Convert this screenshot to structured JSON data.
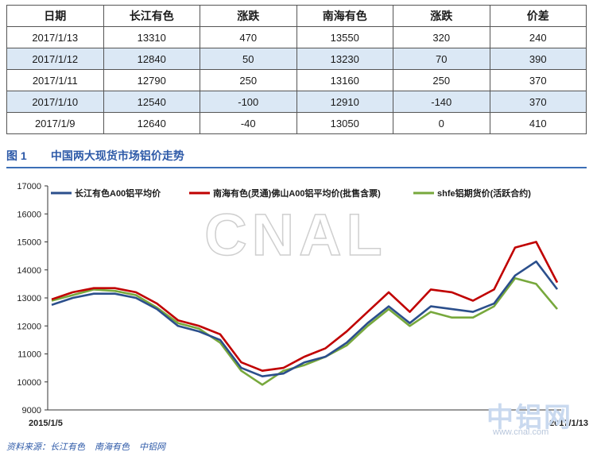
{
  "table": {
    "headers": [
      "日期",
      "长江有色",
      "涨跌",
      "南海有色",
      "涨跌",
      "价差"
    ],
    "rows": [
      [
        "2017/1/13",
        "13310",
        "470",
        "13550",
        "320",
        "240"
      ],
      [
        "2017/1/12",
        "12840",
        "50",
        "13230",
        "70",
        "390"
      ],
      [
        "2017/1/11",
        "12790",
        "250",
        "13160",
        "250",
        "370"
      ],
      [
        "2017/1/10",
        "12540",
        "-100",
        "12910",
        "-140",
        "370"
      ],
      [
        "2017/1/9",
        "12640",
        "-40",
        "13050",
        "0",
        "410"
      ]
    ]
  },
  "figure": {
    "number": "图 1",
    "title": "中国两大现货市场铝价走势"
  },
  "source": {
    "label": "资料来源：",
    "items": [
      "长江有色",
      "南海有色",
      "中铝网"
    ]
  },
  "watermarks": {
    "center": "CNAL",
    "right": "中铝网",
    "url": "www.cnal.com"
  },
  "colors": {
    "changjiang": "#2b4f8c",
    "nanhai": "#c00000",
    "shfe": "#77a83c",
    "accent": "#2e5aa8"
  },
  "chart_data": {
    "type": "line",
    "ylim": [
      9000,
      17000
    ],
    "yticks": [
      9000,
      10000,
      11000,
      12000,
      13000,
      14000,
      15000,
      16000,
      17000
    ],
    "x_start_label": "2015/1/5",
    "x_end_label": "2017/1/13",
    "legend_position": "top",
    "grid": false,
    "x": [
      "2015-01",
      "2015-02",
      "2015-03",
      "2015-04",
      "2015-05",
      "2015-06",
      "2015-07",
      "2015-08",
      "2015-09",
      "2015-10",
      "2015-11",
      "2015-12",
      "2016-01",
      "2016-02",
      "2016-03",
      "2016-04",
      "2016-05",
      "2016-06",
      "2016-07",
      "2016-08",
      "2016-09",
      "2016-10",
      "2016-11",
      "2016-12",
      "2017-01"
    ],
    "series": [
      {
        "name": "长江有色A00铝平均价",
        "color": "#2b4f8c",
        "values": [
          12750,
          13000,
          13150,
          13150,
          13000,
          12600,
          12000,
          11800,
          11500,
          10500,
          10200,
          10300,
          10700,
          10900,
          11400,
          12100,
          12700,
          12100,
          12700,
          12600,
          12500,
          12800,
          13800,
          14300,
          13310
        ]
      },
      {
        "name": "南海有色(灵通)佛山A00铝平均价(批售含票)",
        "color": "#c00000",
        "values": [
          12950,
          13200,
          13350,
          13350,
          13200,
          12800,
          12200,
          12000,
          11700,
          10700,
          10400,
          10500,
          10900,
          11200,
          11800,
          12500,
          13200,
          12500,
          13300,
          13200,
          12900,
          13300,
          14800,
          15000,
          13550
        ]
      },
      {
        "name": "shfe铝期货价(活跃合约)",
        "color": "#77a83c",
        "values": [
          12900,
          13100,
          13300,
          13250,
          13100,
          12650,
          12100,
          11900,
          11400,
          10400,
          9900,
          10400,
          10600,
          10900,
          11300,
          12000,
          12600,
          12000,
          12500,
          12300,
          12300,
          12700,
          13700,
          13500,
          12600
        ]
      }
    ]
  }
}
